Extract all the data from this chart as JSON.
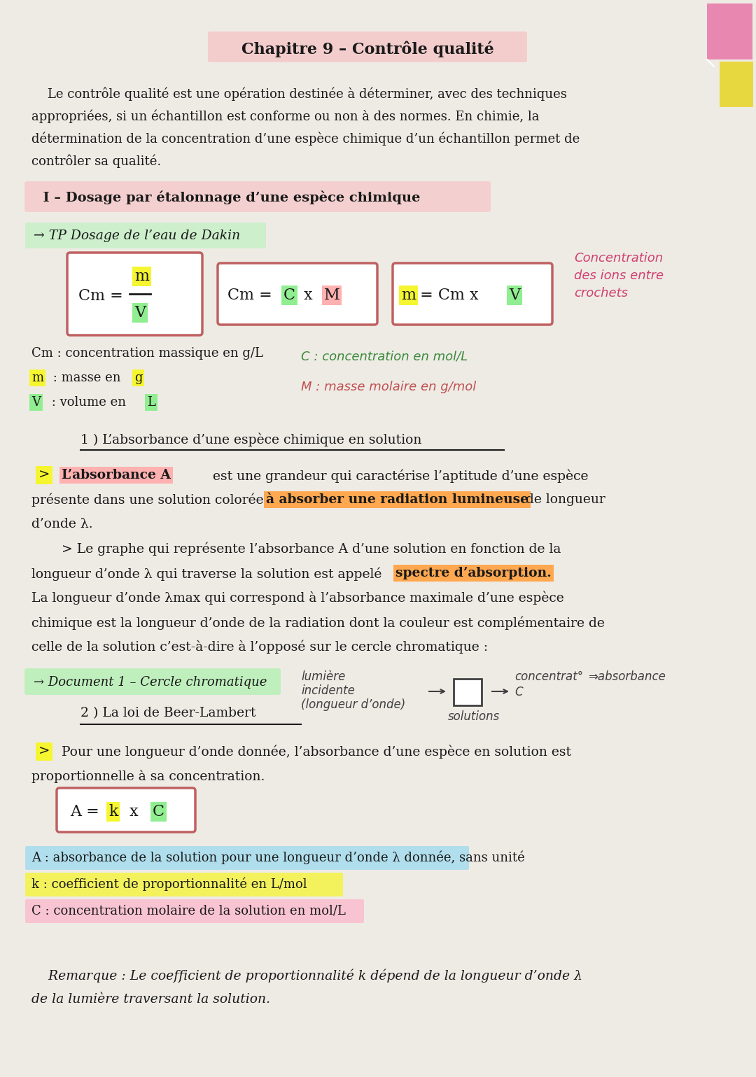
{
  "bg_color": "#eeebe5",
  "title": "Chapitre 9 – Contrôle qualité",
  "title_highlight": "#f5c8c8",
  "intro_text_line1": "    Le contrôle qualité est une opération destinée à déterminer, avec des techniques",
  "intro_text_line2": "appropriées, si un échantillon est conforme ou non à des normes. En chimie, la",
  "intro_text_line3": "détermination de la concentration d’une espèce chimique d’un échantillon permet de",
  "intro_text_line4": "contrôler sa qualité.",
  "section1_title": "  I – Dosage par étalonnage d’une espèce chimique",
  "section1_highlight": "#f5c8c8",
  "tp_label": "→ TP Dosage de l’eau de Dakin",
  "tp_highlight": "#c8f0c8",
  "formula_box_color": "#c06060",
  "concentration_note_line1": "Concentration",
  "concentration_note_line2": "des ions entre",
  "concentration_note_line3": "crochets",
  "concentration_color": "#d04070",
  "m_highlight": "#f5f530",
  "v_highlight": "#90ee90",
  "c_highlight": "#90ee90",
  "M_highlight": "#ffb0b0",
  "subsection1_title": "1 ) L’absorbance d’une espèce chimique en solution",
  "absorbance_text_1_highlight": "#ffb0b0",
  "absorbance_text_3_highlight": "#ffa850",
  "spectre_highlight": "#ffa850",
  "doc1_label": "→ Document 1 – Cercle chromatique",
  "doc1_highlight": "#b8f0b8",
  "subsection2_title": "2 ) La loi de Beer-Lambert",
  "akc_k_highlight": "#f5f530",
  "akc_c_highlight": "#90ee90",
  "a_highlight": "#90d8f0",
  "k_highlight": "#f5f530",
  "c2_highlight": "#ffb0c8",
  "remarque_text_line1": "    Remarque : Le coefficient de proportionnalité k dépend de la longueur d’onde λ",
  "remarque_text_line2": "de la lumière traversant la solution.",
  "pink_tab_color": "#e888b0",
  "yellow_tab_color": "#e8d840",
  "text_color": "#1a1a1a"
}
